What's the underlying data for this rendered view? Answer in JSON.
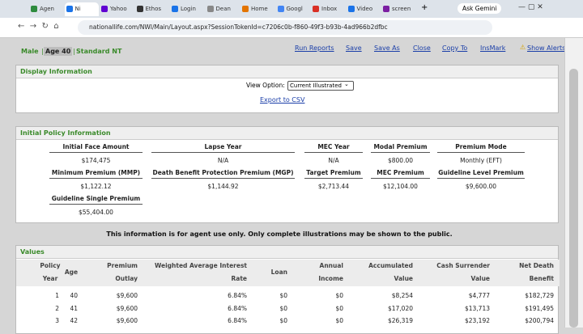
{
  "browser": {
    "tabs": [
      "Agen",
      "Ni",
      "Yahoo",
      "Ethos",
      "Login",
      "Dean",
      "Home",
      "Googl",
      "Inbox",
      "Video",
      "screen"
    ],
    "new_tab": "+",
    "gemini": "Ask Gemini",
    "url": "nationallife.com/NWI/Main/Layout.aspx?SessionTokenId=c7206c0b-f860-49f3-b93b-4ad966b2dfbc"
  },
  "header": {
    "gender": "Male",
    "age": "Age 40",
    "risk_class": "Standard NT",
    "separator": "|",
    "links": [
      "Run Reports",
      "Save",
      "Save As",
      "Close",
      "Copy To",
      "InsMark",
      "Show Alerts"
    ]
  },
  "display_panel": {
    "title": "Display Information",
    "view_option_label": "View Option:",
    "view_option": "Current Illustrated",
    "export": "Export to CSV"
  },
  "policy_panel": {
    "title": "Initial Policy Information",
    "rows": [
      [
        {
          "label": "Initial Face Amount",
          "value": "$174,475"
        },
        {
          "label": "Lapse Year",
          "value": "N/A"
        },
        {
          "label": "MEC Year",
          "value": "N/A"
        },
        {
          "label": "Modal Premium",
          "value": "$800.00"
        },
        {
          "label": "Premium Mode",
          "value": "Monthly (EFT)"
        }
      ],
      [
        {
          "label": "Minimum Premium (MMP)",
          "value": "$1,122.12"
        },
        {
          "label": "Death Benefit Protection Premium (MGP)",
          "value": "$1,144.92"
        },
        {
          "label": "Target Premium",
          "value": "$2,713.44"
        },
        {
          "label": "MEC Premium",
          "value": "$12,104.00"
        },
        {
          "label": "Guideline Level Premium",
          "value": "$9,600.00"
        }
      ],
      [
        {
          "label": "Guideline Single Premium",
          "value": "$55,404.00"
        }
      ]
    ]
  },
  "notice": "This information is for agent use only. Only complete illustrations may be shown to the public.",
  "values_panel": {
    "title": "Values",
    "headers": [
      [
        "Policy",
        "Year"
      ],
      [
        "Age"
      ],
      [
        "Premium",
        "Outlay"
      ],
      [
        "Weighted Average Interest",
        "Rate"
      ],
      [
        "Loan"
      ],
      [
        "Annual",
        "Income"
      ],
      [
        "Accumulated",
        "Value"
      ],
      [
        "Cash Surrender",
        "Value"
      ],
      [
        "Net Death",
        "Benefit"
      ]
    ],
    "rows": [
      [
        "1",
        "40",
        "$9,600",
        "6.84%",
        "$0",
        "$0",
        "$8,254",
        "$4,777",
        "$182,729"
      ],
      [
        "2",
        "41",
        "$9,600",
        "6.84%",
        "$0",
        "$0",
        "$17,020",
        "$13,713",
        "$191,495"
      ],
      [
        "3",
        "42",
        "$9,600",
        "6.84%",
        "$0",
        "$0",
        "$26,319",
        "$23,192",
        "$200,794"
      ]
    ]
  }
}
